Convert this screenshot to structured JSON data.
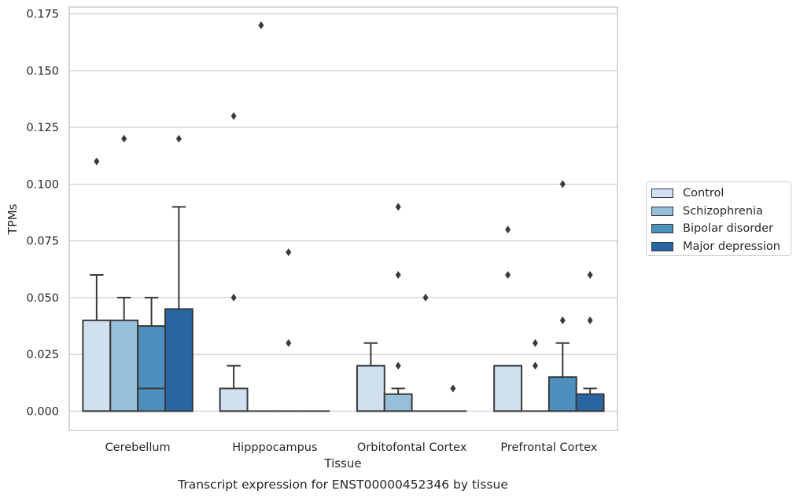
{
  "chart_data": {
    "type": "box",
    "xlabel": "Tissue",
    "ylabel": "TPMs",
    "caption": "Transcript expression for ENST00000452346 by tissue",
    "ylim": [
      -0.0085,
      0.178
    ],
    "yticks": [
      0.0,
      0.025,
      0.05,
      0.075,
      0.1,
      0.125,
      0.15,
      0.175
    ],
    "ytick_labels": [
      "0.000",
      "0.025",
      "0.050",
      "0.075",
      "0.100",
      "0.125",
      "0.150",
      "0.175"
    ],
    "grid": "horizontal",
    "legend_position": "right",
    "categories": [
      "Cerebellum",
      "Hipppocampus",
      "Orbitofontal Cortex",
      "Prefrontal Cortex"
    ],
    "series": [
      {
        "name": "Control",
        "color": "#d0e0f0",
        "boxes": [
          {
            "q1": 0.0,
            "median": 0.0,
            "q3": 0.04,
            "whisker_low": 0.0,
            "whisker_high": 0.06,
            "outliers": [
              0.11
            ]
          },
          {
            "q1": 0.0,
            "median": 0.0,
            "q3": 0.01,
            "whisker_low": 0.0,
            "whisker_high": 0.02,
            "outliers": [
              0.05,
              0.13
            ]
          },
          {
            "q1": 0.0,
            "median": 0.0,
            "q3": 0.02,
            "whisker_low": 0.0,
            "whisker_high": 0.03,
            "outliers": []
          },
          {
            "q1": 0.0,
            "median": 0.0,
            "q3": 0.02,
            "whisker_low": 0.0,
            "whisker_high": 0.02,
            "outliers": [
              0.06,
              0.08
            ]
          }
        ]
      },
      {
        "name": "Schizophrenia",
        "color": "#97bfd9",
        "boxes": [
          {
            "q1": 0.0,
            "median": 0.0,
            "q3": 0.04,
            "whisker_low": 0.0,
            "whisker_high": 0.05,
            "outliers": [
              0.12
            ]
          },
          {
            "q1": 0.0,
            "median": 0.0,
            "q3": 0.0,
            "whisker_low": 0.0,
            "whisker_high": 0.0,
            "outliers": [
              0.17
            ]
          },
          {
            "q1": 0.0,
            "median": 0.0,
            "q3": 0.0075,
            "whisker_low": 0.0,
            "whisker_high": 0.01,
            "outliers": [
              0.02,
              0.06,
              0.09
            ]
          },
          {
            "q1": 0.0,
            "median": 0.0,
            "q3": 0.0,
            "whisker_low": 0.0,
            "whisker_high": 0.0,
            "outliers": [
              0.02,
              0.03
            ]
          }
        ]
      },
      {
        "name": "Bipolar disorder",
        "color": "#4d8fbd",
        "boxes": [
          {
            "q1": 0.0,
            "median": 0.01,
            "q3": 0.0375,
            "whisker_low": 0.0,
            "whisker_high": 0.05,
            "outliers": []
          },
          {
            "q1": 0.0,
            "median": 0.0,
            "q3": 0.0,
            "whisker_low": 0.0,
            "whisker_high": 0.0,
            "outliers": [
              0.07,
              0.03
            ]
          },
          {
            "q1": 0.0,
            "median": 0.0,
            "q3": 0.0,
            "whisker_low": 0.0,
            "whisker_high": 0.0,
            "outliers": [
              0.05
            ]
          },
          {
            "q1": 0.0,
            "median": 0.0,
            "q3": 0.015,
            "whisker_low": 0.0,
            "whisker_high": 0.03,
            "outliers": [
              0.04,
              0.1
            ]
          }
        ]
      },
      {
        "name": "Major depression",
        "color": "#2a65a3",
        "boxes": [
          {
            "q1": 0.0,
            "median": 0.0,
            "q3": 0.045,
            "whisker_low": 0.0,
            "whisker_high": 0.09,
            "outliers": [
              0.12
            ]
          },
          {
            "q1": 0.0,
            "median": 0.0,
            "q3": 0.0,
            "whisker_low": 0.0,
            "whisker_high": 0.0,
            "outliers": []
          },
          {
            "q1": 0.0,
            "median": 0.0,
            "q3": 0.0,
            "whisker_low": 0.0,
            "whisker_high": 0.0,
            "outliers": [
              0.01
            ]
          },
          {
            "q1": 0.0,
            "median": 0.0,
            "q3": 0.0075,
            "whisker_low": 0.0,
            "whisker_high": 0.01,
            "outliers": [
              0.04,
              0.06
            ]
          }
        ]
      }
    ]
  },
  "legend": {
    "items": [
      {
        "label": "Control",
        "color": "#d0e0f0"
      },
      {
        "label": "Schizophrenia",
        "color": "#97bfd9"
      },
      {
        "label": "Bipolar disorder",
        "color": "#4d8fbd"
      },
      {
        "label": "Major depression",
        "color": "#2a65a3"
      }
    ]
  }
}
